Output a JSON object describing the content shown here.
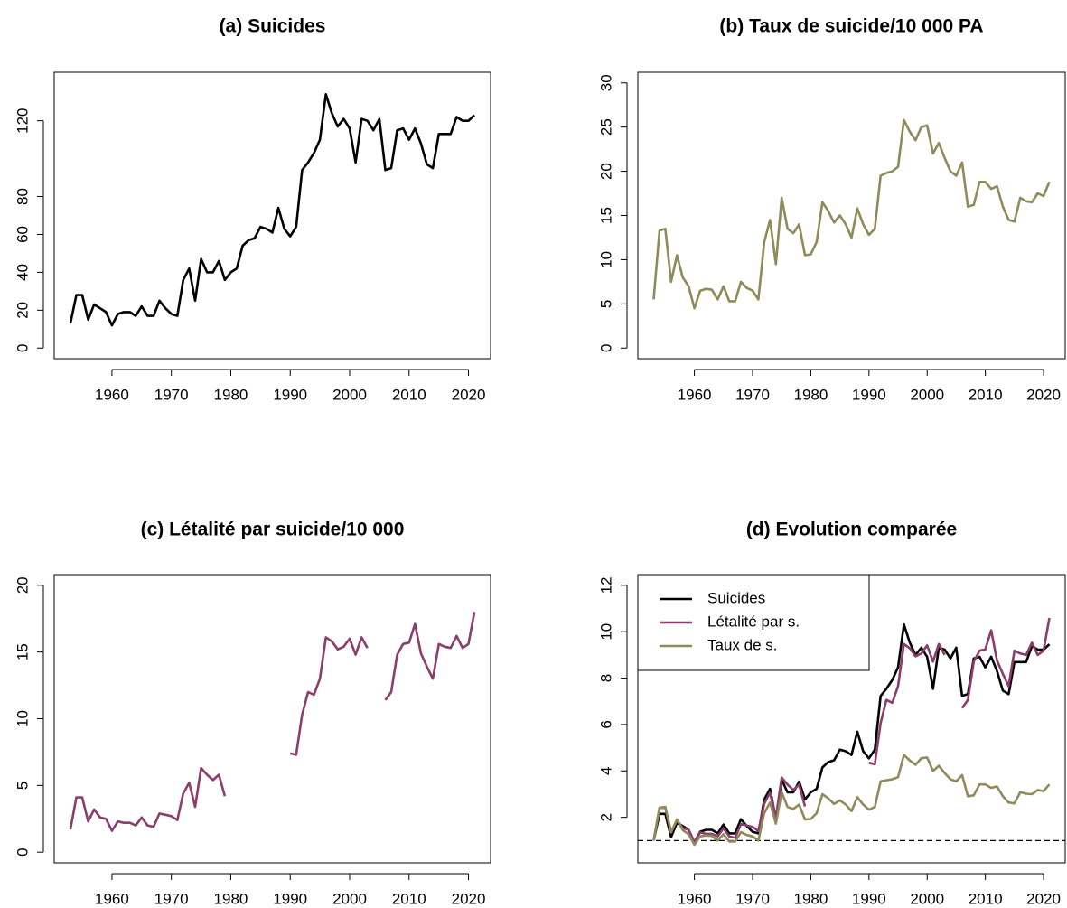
{
  "chart_data": [
    {
      "type": "line",
      "title": "(a) Suicides",
      "color": "#000000",
      "x": [
        1953,
        1954,
        1955,
        1956,
        1957,
        1958,
        1959,
        1960,
        1961,
        1962,
        1963,
        1964,
        1965,
        1966,
        1967,
        1968,
        1969,
        1970,
        1971,
        1972,
        1973,
        1974,
        1975,
        1976,
        1977,
        1978,
        1979,
        1980,
        1981,
        1982,
        1983,
        1984,
        1985,
        1986,
        1987,
        1988,
        1989,
        1990,
        1991,
        1992,
        1993,
        1994,
        1995,
        1996,
        1997,
        1998,
        1999,
        2000,
        2001,
        2002,
        2003,
        2004,
        2005,
        2006,
        2007,
        2008,
        2009,
        2010,
        2011,
        2012,
        2013,
        2014,
        2015,
        2016,
        2017,
        2018,
        2019,
        2020,
        2021
      ],
      "values": [
        13,
        28,
        28,
        15,
        23,
        21,
        19,
        12,
        18,
        19,
        19,
        17,
        22,
        17,
        17,
        25,
        21,
        18,
        17,
        36,
        42,
        25,
        47,
        40,
        40,
        46,
        36,
        40,
        42,
        54,
        57,
        58,
        64,
        63,
        61,
        74,
        63,
        59,
        64,
        94,
        98,
        103,
        110,
        134,
        124,
        117,
        121,
        116,
        98,
        121,
        120,
        115,
        121,
        94,
        95,
        115,
        116,
        110,
        116,
        108,
        97,
        95,
        113,
        113,
        113,
        122,
        120,
        120,
        123
      ],
      "xlim": [
        1950.28,
        2023.72
      ],
      "xticks": [
        1960,
        1970,
        1980,
        1990,
        2000,
        2010,
        2020
      ],
      "ylim": [
        -5.6,
        145.6
      ],
      "yticks": [
        0,
        20,
        40,
        60,
        80,
        120
      ]
    },
    {
      "type": "line",
      "title": "(b) Taux de suicide/10 000 PA",
      "color": "#8f8a5a",
      "x": [
        1953,
        1954,
        1955,
        1956,
        1957,
        1958,
        1959,
        1960,
        1961,
        1962,
        1963,
        1964,
        1965,
        1966,
        1967,
        1968,
        1969,
        1970,
        1971,
        1972,
        1973,
        1974,
        1975,
        1976,
        1977,
        1978,
        1979,
        1980,
        1981,
        1982,
        1983,
        1984,
        1985,
        1986,
        1987,
        1988,
        1989,
        1990,
        1991,
        1992,
        1993,
        1994,
        1995,
        1996,
        1997,
        1998,
        1999,
        2000,
        2001,
        2002,
        2003,
        2004,
        2005,
        2006,
        2007,
        2008,
        2009,
        2010,
        2011,
        2012,
        2013,
        2014,
        2015,
        2016,
        2017,
        2018,
        2019,
        2020,
        2021
      ],
      "values": [
        5.5,
        13.3,
        13.5,
        7.5,
        10.5,
        8,
        7,
        4.5,
        6.5,
        6.7,
        6.6,
        5.5,
        7,
        5.3,
        5.3,
        7.5,
        6.8,
        6.5,
        5.5,
        12,
        14.5,
        9.5,
        17,
        13.5,
        13,
        14,
        10.5,
        10.6,
        12,
        16.5,
        15.5,
        14.2,
        15,
        14,
        12.5,
        15.8,
        14,
        12.8,
        13.5,
        19.5,
        19.8,
        20,
        20.5,
        25.8,
        24.5,
        23.5,
        25,
        25.2,
        22,
        23.2,
        21.5,
        20,
        19.5,
        21,
        16,
        16.2,
        18.8,
        18.8,
        18,
        18.3,
        16,
        14.5,
        14.3,
        17,
        16.6,
        16.5,
        17.5,
        17.2,
        18.8
      ],
      "xlim": [
        1950.28,
        2023.72
      ],
      "xticks": [
        1960,
        1970,
        1980,
        1990,
        2000,
        2010,
        2020
      ],
      "ylim": [
        -1.2,
        31.2
      ],
      "yticks": [
        0,
        5,
        10,
        15,
        20,
        25,
        30
      ]
    },
    {
      "type": "line",
      "title": "(c) Létalité par suicide/10 000",
      "color": "#8b3e6b",
      "x": [
        1953,
        1954,
        1955,
        1956,
        1957,
        1958,
        1959,
        1960,
        1961,
        1962,
        1963,
        1964,
        1965,
        1966,
        1967,
        1968,
        1969,
        1970,
        1971,
        1972,
        1973,
        1974,
        1975,
        1976,
        1977,
        1978,
        1979,
        1980,
        1981,
        1982,
        1983,
        1984,
        1985,
        1986,
        1987,
        1988,
        1989,
        1990,
        1991,
        1992,
        1993,
        1994,
        1995,
        1996,
        1997,
        1998,
        1999,
        2000,
        2001,
        2002,
        2003,
        2004,
        2005,
        2006,
        2007,
        2008,
        2009,
        2010,
        2011,
        2012,
        2013,
        2014,
        2015,
        2016,
        2017,
        2018,
        2019,
        2020,
        2021
      ],
      "values": [
        1.7,
        4.1,
        4.1,
        2.3,
        3.2,
        2.6,
        2.5,
        1.6,
        2.3,
        2.2,
        2.2,
        2.0,
        2.6,
        2.0,
        1.9,
        2.9,
        2.8,
        2.7,
        2.4,
        4.4,
        5.2,
        3.4,
        6.3,
        5.8,
        5.4,
        5.8,
        4.2,
        null,
        null,
        null,
        null,
        null,
        null,
        null,
        null,
        null,
        null,
        7.4,
        7.3,
        10.3,
        12,
        11.8,
        13,
        16.1,
        15.8,
        15.2,
        15.4,
        16.0,
        14.8,
        16.1,
        15.3,
        null,
        null,
        11.4,
        12,
        14.8,
        15.6,
        15.7,
        17.1,
        14.9,
        13.9,
        13.0,
        15.6,
        15.4,
        15.3,
        16.2,
        15.3,
        15.6,
        18
      ],
      "xlim": [
        1950.28,
        2023.72
      ],
      "xticks": [
        1960,
        1970,
        1980,
        1990,
        2000,
        2010,
        2020
      ],
      "ylim": [
        -0.8,
        20.8
      ],
      "yticks": [
        0,
        5,
        10,
        15,
        20
      ]
    },
    {
      "type": "line",
      "title": "(d) Evolution comparée",
      "legend": "topleft",
      "hline": 1,
      "x": [
        1953,
        1954,
        1955,
        1956,
        1957,
        1958,
        1959,
        1960,
        1961,
        1962,
        1963,
        1964,
        1965,
        1966,
        1967,
        1968,
        1969,
        1970,
        1971,
        1972,
        1973,
        1974,
        1975,
        1976,
        1977,
        1978,
        1979,
        1980,
        1981,
        1982,
        1983,
        1984,
        1985,
        1986,
        1987,
        1988,
        1989,
        1990,
        1991,
        1992,
        1993,
        1994,
        1995,
        1996,
        1997,
        1998,
        1999,
        2000,
        2001,
        2002,
        2003,
        2004,
        2005,
        2006,
        2007,
        2008,
        2009,
        2010,
        2011,
        2012,
        2013,
        2014,
        2015,
        2016,
        2017,
        2018,
        2019,
        2020,
        2021
      ],
      "series": [
        {
          "name": "Suicides",
          "color": "#000000",
          "values": [
            1.0,
            2.15,
            2.15,
            1.15,
            1.77,
            1.62,
            1.46,
            0.92,
            1.38,
            1.46,
            1.46,
            1.31,
            1.69,
            1.31,
            1.31,
            1.92,
            1.62,
            1.38,
            1.31,
            2.77,
            3.23,
            1.92,
            3.62,
            3.08,
            3.08,
            3.54,
            2.77,
            3.08,
            3.23,
            4.15,
            4.38,
            4.46,
            4.92,
            4.85,
            4.69,
            5.69,
            4.85,
            4.54,
            4.92,
            7.23,
            7.54,
            7.92,
            8.46,
            10.31,
            9.54,
            9.0,
            9.31,
            8.92,
            7.54,
            9.31,
            9.23,
            8.85,
            9.31,
            7.23,
            7.31,
            8.85,
            8.92,
            8.46,
            8.92,
            8.31,
            7.46,
            7.31,
            8.69,
            8.69,
            8.69,
            9.38,
            9.23,
            9.23,
            9.46
          ]
        },
        {
          "name": "Létalité par s.",
          "color": "#8b3e6b",
          "values": [
            1.0,
            2.41,
            2.41,
            1.35,
            1.88,
            1.53,
            1.47,
            0.94,
            1.35,
            1.29,
            1.29,
            1.18,
            1.53,
            1.18,
            1.12,
            1.71,
            1.65,
            1.59,
            1.41,
            2.59,
            3.06,
            2.0,
            3.71,
            3.41,
            3.18,
            3.41,
            2.47,
            null,
            null,
            null,
            null,
            null,
            null,
            null,
            null,
            null,
            null,
            4.35,
            4.29,
            6.06,
            7.06,
            6.94,
            7.65,
            9.47,
            9.29,
            8.94,
            9.06,
            9.41,
            8.71,
            9.47,
            9.0,
            null,
            null,
            6.71,
            7.06,
            8.71,
            9.18,
            9.24,
            10.06,
            8.76,
            8.18,
            7.65,
            9.18,
            9.06,
            9.0,
            9.53,
            9.0,
            9.18,
            10.59
          ]
        },
        {
          "name": "Taux de s.",
          "color": "#8f8a5a",
          "values": [
            1.0,
            2.42,
            2.45,
            1.36,
            1.91,
            1.45,
            1.27,
            0.82,
            1.18,
            1.22,
            1.2,
            1.0,
            1.27,
            0.96,
            0.96,
            1.36,
            1.24,
            1.18,
            1.0,
            2.18,
            2.64,
            1.73,
            3.09,
            2.45,
            2.36,
            2.55,
            1.91,
            1.93,
            2.18,
            3.0,
            2.82,
            2.58,
            2.73,
            2.55,
            2.27,
            2.87,
            2.55,
            2.33,
            2.45,
            3.55,
            3.6,
            3.64,
            3.73,
            4.69,
            4.45,
            4.27,
            4.55,
            4.58,
            4.0,
            4.22,
            3.91,
            3.64,
            3.55,
            3.82,
            2.91,
            2.95,
            3.42,
            3.42,
            3.27,
            3.33,
            2.91,
            2.64,
            2.6,
            3.09,
            3.02,
            3.0,
            3.18,
            3.13,
            3.42
          ]
        }
      ],
      "xlim": [
        1950.28,
        2023.72
      ],
      "xticks": [
        1960,
        1970,
        1980,
        1990,
        2000,
        2010,
        2020
      ],
      "ylim": [
        0.04,
        12.46
      ],
      "yticks": [
        2,
        4,
        6,
        8,
        10,
        12
      ]
    }
  ]
}
